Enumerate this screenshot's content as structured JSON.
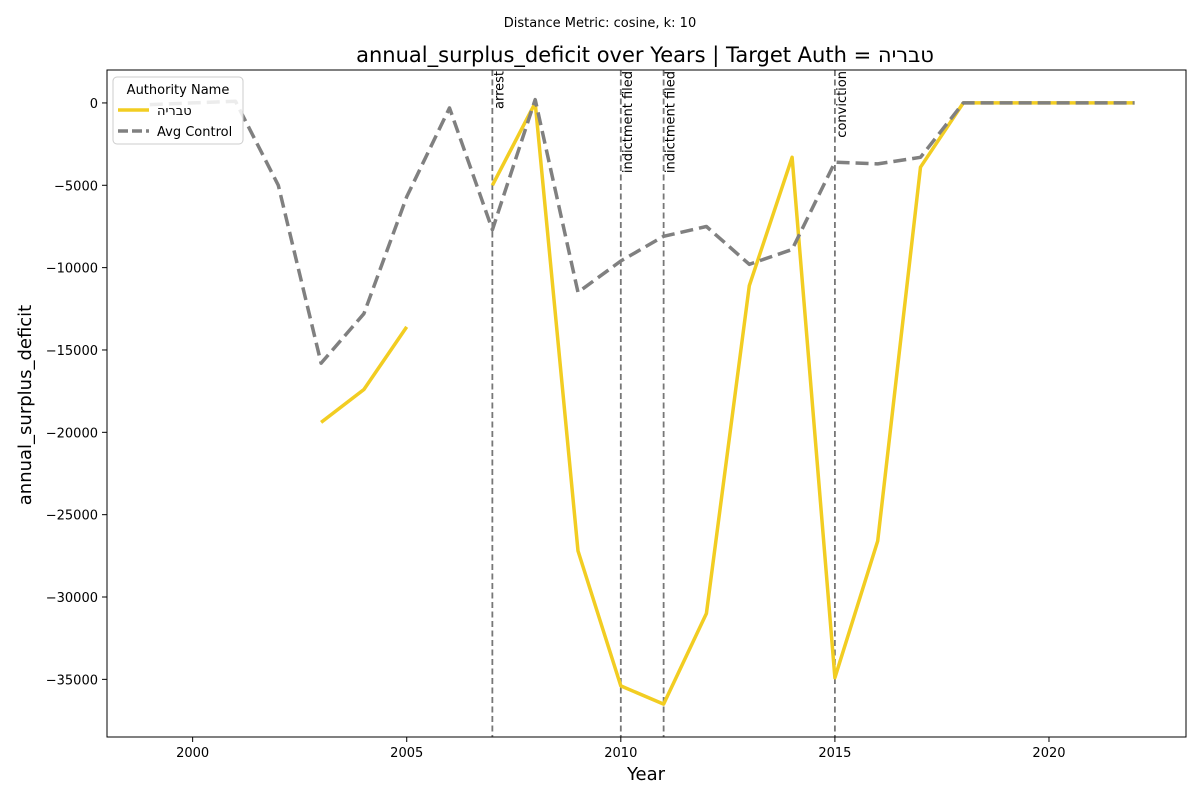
{
  "chart_data": {
    "type": "line",
    "suptitle": "Distance Metric: cosine, k: 10",
    "title": "annual_surplus_deficit over Years | Target Auth = טבריה",
    "xlabel": "Year",
    "ylabel": "annual_surplus_deficit",
    "xlim": [
      1998,
      2023.2
    ],
    "ylim": [
      -38500,
      2000
    ],
    "x_ticks": [
      2000,
      2005,
      2010,
      2015,
      2020
    ],
    "y_ticks": [
      0,
      -5000,
      -10000,
      -15000,
      -20000,
      -25000,
      -30000,
      -35000
    ],
    "grid": false,
    "legend": {
      "title": "Authority Name",
      "placement": "top-left",
      "entries": [
        "טבריה",
        "Avg Control"
      ]
    },
    "series": [
      {
        "name": "טבריה",
        "color": "#f2cd22",
        "style": "solid",
        "segments": [
          {
            "x": [
              2003,
              2004,
              2005
            ],
            "y": [
              -19400,
              -17400,
              -13600
            ]
          },
          {
            "x": [
              2007,
              2008,
              2009,
              2010,
              2011,
              2012,
              2013,
              2014,
              2015,
              2016,
              2017,
              2018,
              2019,
              2020,
              2021,
              2022
            ],
            "y": [
              -5000,
              0,
              -27200,
              -35400,
              -36500,
              -31000,
              -11100,
              -3300,
              -34900,
              -26600,
              -3900,
              0,
              0,
              0,
              0,
              0
            ]
          }
        ]
      },
      {
        "name": "Avg Control",
        "color": "#808080",
        "style": "dashed",
        "segments": [
          {
            "x": [
              1999,
              2000,
              2001,
              2002,
              2003,
              2004,
              2005,
              2006,
              2007,
              2008,
              2009,
              2010,
              2011,
              2012,
              2013,
              2014,
              2015,
              2016,
              2017,
              2018,
              2019,
              2020,
              2021,
              2022
            ],
            "y": [
              -100,
              0,
              100,
              -5000,
              -15800,
              -12800,
              -5700,
              -300,
              -7700,
              200,
              -11500,
              -9600,
              -8100,
              -7500,
              -9800,
              -8900,
              -3600,
              -3700,
              -3300,
              0,
              0,
              0,
              0,
              0
            ]
          }
        ]
      }
    ],
    "events": [
      {
        "x": 2007,
        "label": "arrest"
      },
      {
        "x": 2010,
        "label": "indictment filed"
      },
      {
        "x": 2011,
        "label": "indictment filed"
      },
      {
        "x": 2015,
        "label": "conviction"
      }
    ]
  }
}
